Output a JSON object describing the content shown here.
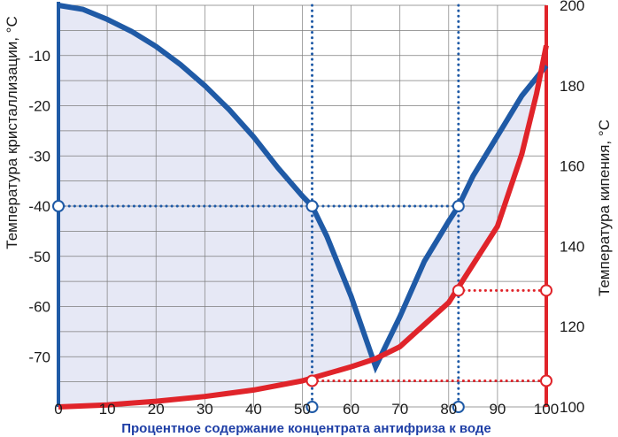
{
  "chart_data": {
    "type": "line",
    "xlabel": "Процентное содержание концентрата антифриза к воде",
    "ylabel_left": "Температура кристаллизации, °С",
    "ylabel_right": "Температура кипения, °С",
    "x_ticks": [
      "0",
      "10",
      "20",
      "30",
      "40",
      "50",
      "60",
      "70",
      "80",
      "90",
      "100"
    ],
    "y_left_ticks": [
      "-10",
      "-20",
      "-30",
      "-40",
      "-50",
      "-60",
      "-70"
    ],
    "y_right_ticks": [
      "100",
      "120",
      "140",
      "160",
      "180",
      "200"
    ],
    "xlim": [
      0,
      100
    ],
    "ylim_left": [
      -80,
      0
    ],
    "ylim_right": [
      100,
      200
    ],
    "series": [
      {
        "axis": "left",
        "color": "#1f5aa6",
        "x": [
          0,
          5,
          10,
          15,
          20,
          25,
          30,
          35,
          40,
          45,
          50,
          52,
          55,
          60,
          65,
          70,
          75,
          80,
          82,
          85,
          90,
          95,
          100
        ],
        "y": [
          0,
          -0.8,
          -2.8,
          -5.2,
          -8.2,
          -11.8,
          -16,
          -20.8,
          -26.2,
          -32.4,
          -38,
          -40,
          -46,
          -58,
          -72,
          -62,
          -51,
          -43,
          -40,
          -34,
          -26,
          -18,
          -12
        ]
      },
      {
        "axis": "right",
        "color": "#e0242a",
        "x": [
          0,
          10,
          20,
          30,
          40,
          50,
          60,
          65,
          70,
          80,
          90,
          95,
          98,
          100
        ],
        "y": [
          100,
          100.5,
          101.4,
          102.6,
          104.2,
          106.5,
          110,
          112,
          115,
          126,
          145,
          163,
          178,
          190
        ]
      }
    ],
    "guides": [
      {
        "x": 52,
        "y_left": -40,
        "y_right": 106.5
      },
      {
        "x": 82,
        "y_left": -40,
        "y_right": 129
      }
    ],
    "colors": {
      "guide_blue": "#1f5aa6",
      "guide_red": "#e0242a",
      "fill": "#e6e8f5"
    }
  }
}
